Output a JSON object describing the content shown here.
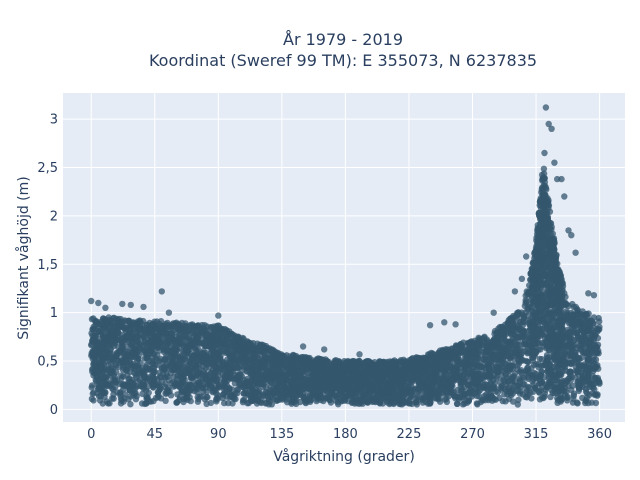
{
  "chart_data": {
    "type": "scatter",
    "title_line1": "År 1979 - 2019",
    "title_line2": "Koordinat (Sweref 99 TM): E 355073, N 6237835",
    "xlabel": "Vågriktning (grader)",
    "ylabel": "Signifikant våghöjd (m)",
    "xlim": [
      -20,
      378
    ],
    "ylim": [
      -0.13,
      3.27
    ],
    "x_ticks": [
      0,
      45,
      90,
      135,
      180,
      225,
      270,
      315,
      360
    ],
    "x_tick_labels": [
      "0",
      "45",
      "90",
      "135",
      "180",
      "225",
      "270",
      "315",
      "360"
    ],
    "y_ticks": [
      0,
      0.5,
      1,
      1.5,
      2,
      2.5,
      3
    ],
    "y_tick_labels": [
      "0",
      "0,5",
      "1",
      "1,5",
      "2",
      "2,5",
      "3"
    ],
    "grid": true,
    "colors": {
      "marker": "#34576d",
      "plot_bg": "#e5ecf6",
      "grid": "#ffffff",
      "text": "#2a3f5f"
    },
    "envelope": {
      "x": [
        0,
        15,
        30,
        45,
        60,
        75,
        90,
        105,
        120,
        135,
        150,
        165,
        180,
        195,
        210,
        225,
        240,
        255,
        270,
        285,
        295,
        305,
        310,
        315,
        320,
        325,
        330,
        335,
        340,
        345,
        350,
        355,
        360
      ],
      "y_upper": [
        0.95,
        0.95,
        0.93,
        0.92,
        0.9,
        0.88,
        0.87,
        0.75,
        0.68,
        0.58,
        0.55,
        0.52,
        0.5,
        0.5,
        0.5,
        0.52,
        0.58,
        0.65,
        0.72,
        0.8,
        0.92,
        1.05,
        1.3,
        1.75,
        2.55,
        2.05,
        1.55,
        1.25,
        1.1,
        1.05,
        1.0,
        0.98,
        0.95
      ]
    },
    "outliers": [
      {
        "x": 0,
        "y": 1.12
      },
      {
        "x": 5,
        "y": 1.1
      },
      {
        "x": 10,
        "y": 1.05
      },
      {
        "x": 22,
        "y": 1.09
      },
      {
        "x": 28,
        "y": 1.08
      },
      {
        "x": 37,
        "y": 1.06
      },
      {
        "x": 50,
        "y": 1.22
      },
      {
        "x": 55,
        "y": 1.0
      },
      {
        "x": 90,
        "y": 0.97
      },
      {
        "x": 150,
        "y": 0.65
      },
      {
        "x": 165,
        "y": 0.62
      },
      {
        "x": 190,
        "y": 0.57
      },
      {
        "x": 240,
        "y": 0.87
      },
      {
        "x": 250,
        "y": 0.9
      },
      {
        "x": 258,
        "y": 0.88
      },
      {
        "x": 285,
        "y": 1.0
      },
      {
        "x": 300,
        "y": 1.22
      },
      {
        "x": 305,
        "y": 1.35
      },
      {
        "x": 308,
        "y": 1.58
      },
      {
        "x": 322,
        "y": 3.12
      },
      {
        "x": 324,
        "y": 2.95
      },
      {
        "x": 326,
        "y": 2.9
      },
      {
        "x": 321,
        "y": 2.65
      },
      {
        "x": 328,
        "y": 2.55
      },
      {
        "x": 330,
        "y": 2.38
      },
      {
        "x": 333,
        "y": 2.38
      },
      {
        "x": 335,
        "y": 2.2
      },
      {
        "x": 338,
        "y": 1.85
      },
      {
        "x": 340,
        "y": 1.8
      },
      {
        "x": 343,
        "y": 1.62
      },
      {
        "x": 352,
        "y": 1.2
      },
      {
        "x": 356,
        "y": 1.18
      }
    ]
  }
}
